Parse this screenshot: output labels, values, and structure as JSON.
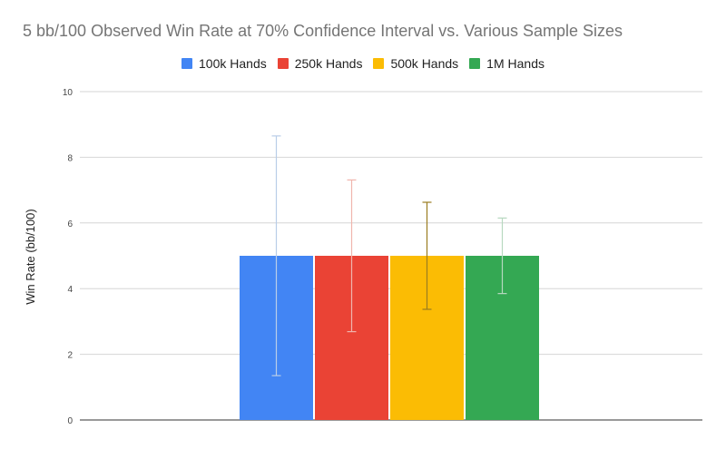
{
  "chart_data": {
    "type": "bar",
    "title": "5 bb/100 Observed Win Rate at 70% Confidence Interval vs. Various Sample Sizes",
    "xlabel": "",
    "ylabel": "Win Rate (bb/100)",
    "ylim": [
      0,
      10
    ],
    "yticks": [
      "0",
      "2",
      "4",
      "6",
      "8",
      "10"
    ],
    "grid": true,
    "legend_position": "top",
    "categories": [
      ""
    ],
    "series": [
      {
        "name": "100k Hands",
        "color": "#4285f4",
        "error_color": "#b9cde8",
        "values": [
          5
        ],
        "error_low": [
          1.35
        ],
        "error_high": [
          8.65
        ]
      },
      {
        "name": "250k Hands",
        "color": "#ea4335",
        "error_color": "#f0b5ad",
        "values": [
          5
        ],
        "error_low": [
          2.69
        ],
        "error_high": [
          7.31
        ]
      },
      {
        "name": "500k Hands",
        "color": "#fbbc04",
        "error_color": "#9a7c20",
        "values": [
          5
        ],
        "error_low": [
          3.37
        ],
        "error_high": [
          6.63
        ]
      },
      {
        "name": "1M Hands",
        "color": "#34a853",
        "error_color": "#b7d8bf",
        "values": [
          5
        ],
        "error_low": [
          3.85
        ],
        "error_high": [
          6.15
        ]
      }
    ]
  }
}
